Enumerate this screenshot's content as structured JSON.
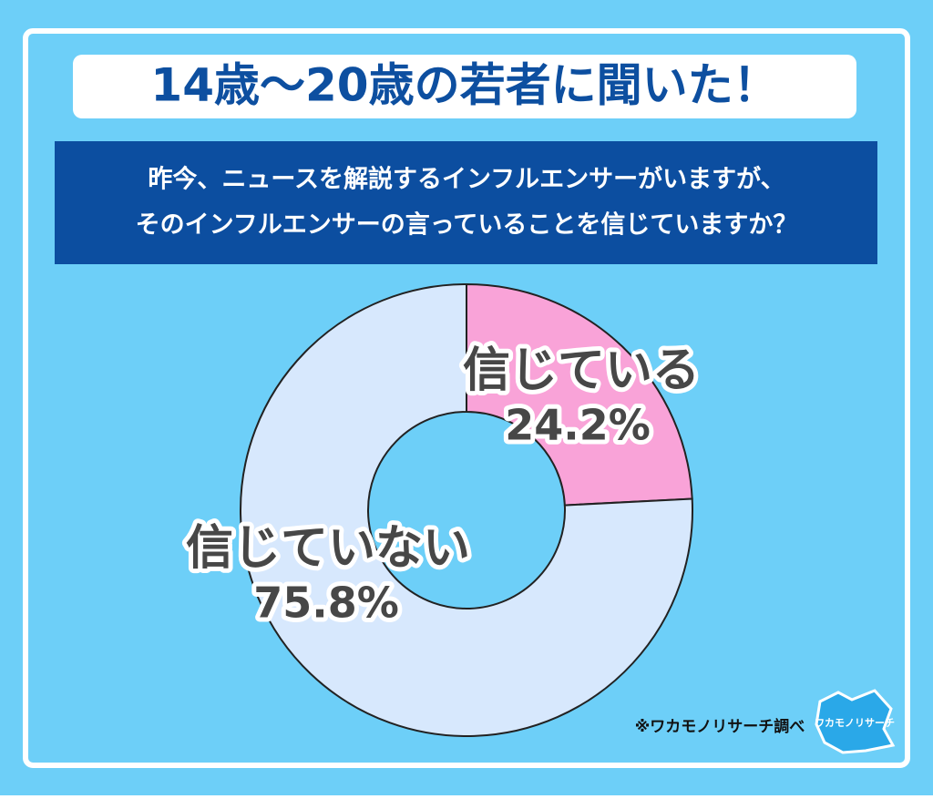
{
  "chart_data": {
    "type": "donut",
    "title": "14歳～20歳の若者に聞いた！",
    "subtitle": [
      "昨今、ニュースを解説するインフルエンサーがいますが、",
      "そのインフルエンサーの言っていることを信じていますか？"
    ],
    "categories": [
      "信じている",
      "信じていない"
    ],
    "values": [
      24.2,
      75.8
    ],
    "value_labels": [
      "24.2%",
      "75.8%"
    ],
    "colors": [
      "#f9a3d8",
      "#d7e8fd"
    ],
    "source": "※ワカモノリサーチ調べ",
    "logo": "ワカモノリサーチ"
  }
}
